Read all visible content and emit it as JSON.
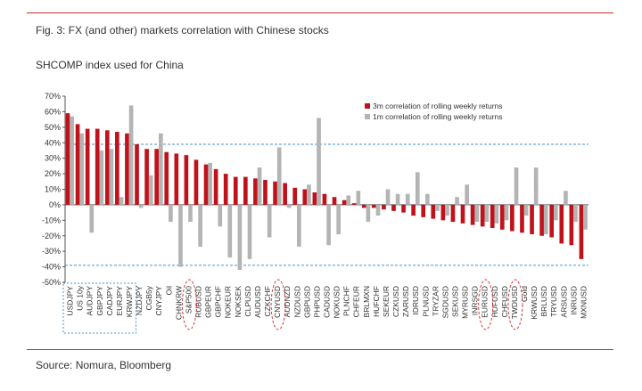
{
  "title": "Fig. 3: FX (and other) markets correlation with Chinese stocks",
  "subtitle": "SHCOMP index used for China",
  "source": "Source: Nomura, Bloomberg",
  "chart_data": {
    "type": "bar",
    "ylim": [
      -50,
      70
    ],
    "yticks": [
      "70%",
      "60%",
      "50%",
      "40%",
      "30%",
      "20%",
      "10%",
      "0%",
      "-10%",
      "-20%",
      "-30%",
      "-40%",
      "-50%"
    ],
    "ytick_values": [
      70,
      60,
      50,
      40,
      30,
      20,
      10,
      0,
      -10,
      -20,
      -30,
      -40,
      -50
    ],
    "reference_lines": [
      39,
      -39
    ],
    "legend_position": "top-right",
    "categories": [
      "USDJPY",
      "US 10y",
      "AUDJPY",
      "GBPJPY",
      "CADJPY",
      "EURJPY",
      "KRWJPY",
      "NZDJPY",
      "CGB5y",
      "CNYJPY",
      "Oil",
      "CHNKRW",
      "S&P500",
      "RUBUSD",
      "GBPEUR",
      "GBPCHF",
      "NOKEUR",
      "NOKSEK",
      "CLPUSD",
      "AUDUSD",
      "CZKCHF",
      "CNYUSD",
      "AUDNZD",
      "NZDUSD",
      "GBPUSD",
      "PHPUSD",
      "CADUSD",
      "NOKUSD",
      "PLNCHF",
      "CHFEUR",
      "BRLMXN",
      "HUFCHF",
      "SEKEUR",
      "CZKUSD",
      "ZARUSD",
      "IDRUSD",
      "PLNUSD",
      "TRYZAR",
      "SGDUSD",
      "SEKUSD",
      "MYRUSD",
      "INRSGD",
      "EURUSD",
      "HUFUSD",
      "CHFUSD",
      "TWDUSD",
      "Gold",
      "KRWUSD",
      "BRLUSD",
      "TRYUSD",
      "ARSUSD",
      "INRUSD",
      "MXNUSD"
    ],
    "series": [
      {
        "name": "3m correlation of rolling weekly returns",
        "color": "#c0121b",
        "values": [
          59,
          52,
          49,
          49,
          48,
          47,
          46,
          39,
          36,
          36,
          34,
          33,
          32,
          29,
          26,
          23,
          20,
          18,
          18,
          17,
          16,
          15,
          14,
          11,
          10,
          8,
          7,
          5,
          3,
          1,
          -2,
          -2,
          -3,
          -4,
          -5,
          -7,
          -8,
          -9,
          -10,
          -11,
          -12,
          -13,
          -14,
          -15,
          -16,
          -17,
          -18,
          -19,
          -20,
          -21,
          -25,
          -26,
          -35
        ]
      },
      {
        "name": "1m correlation of rolling weekly returns",
        "color": "#b4b4b4",
        "values": [
          57,
          46,
          -18,
          35,
          36,
          5,
          64,
          -2,
          19,
          46,
          -11,
          -40,
          -11,
          -27,
          27,
          -14,
          -34,
          -42,
          -35,
          24,
          -21,
          37,
          -2,
          -27,
          13,
          56,
          -26,
          -19,
          6,
          9,
          -11,
          -7,
          10,
          7,
          7,
          21,
          7,
          -4,
          -7,
          5,
          13,
          -11,
          -11,
          -12,
          -10,
          24,
          -7,
          24,
          -19,
          -10,
          9,
          -11,
          -16
        ]
      }
    ],
    "annotations": [
      {
        "type": "dashed-box",
        "categories": [
          "USDJPY",
          "KRWJPY"
        ]
      },
      {
        "type": "dashed-ellipse",
        "category": "S&P500"
      },
      {
        "type": "dashed-ellipse",
        "category": "CNYUSD"
      },
      {
        "type": "dashed-ellipse",
        "category": "EURUSD"
      },
      {
        "type": "dashed-ellipse",
        "category": "TWDUSD"
      }
    ]
  }
}
